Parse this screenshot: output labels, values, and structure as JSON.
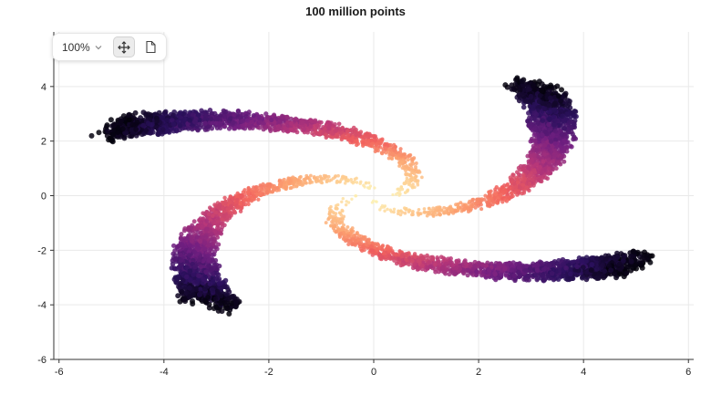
{
  "chart_data": {
    "type": "scatter",
    "title": "100 million points",
    "xlabel": "",
    "ylabel": "",
    "xlim": [
      -6.1,
      6.1
    ],
    "ylim": [
      -6,
      6
    ],
    "x_ticks": [
      -6,
      -4,
      -2,
      0,
      2,
      4,
      6
    ],
    "y_ticks": [
      -6,
      -4,
      -2,
      0,
      2,
      4
    ],
    "grid": true,
    "legend": "none",
    "arms": 4,
    "colormap": "magma (dark purple at center, pale yellow at edges)",
    "colors": [
      "#fcfdbf",
      "#fed395",
      "#fca572",
      "#f1605d",
      "#b73779",
      "#721f81",
      "#2c115f",
      "#000004"
    ]
  },
  "toolbar": {
    "zoom_label": "100%",
    "zoom_icon": "chevron-down-icon",
    "pan_icon": "move-icon",
    "reset_icon": "reset-view-icon"
  }
}
